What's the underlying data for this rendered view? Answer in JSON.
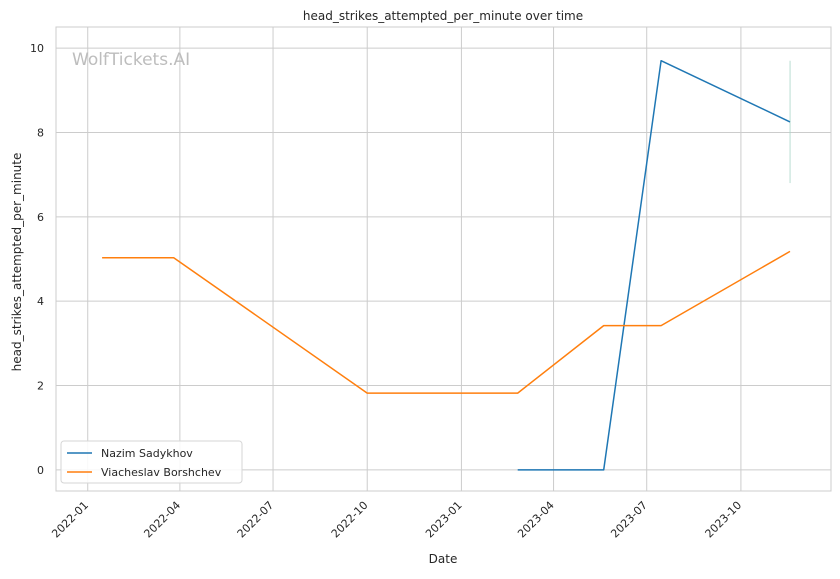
{
  "chart_data": {
    "type": "line",
    "title": "head_strikes_attempted_per_minute over time",
    "xlabel": "Date",
    "ylabel": "head_strikes_attempted_per_minute",
    "watermark": "WolfTickets.AI",
    "xlim": [
      "2021-12-01",
      "2023-12-28"
    ],
    "ylim": [
      -0.5,
      10.5
    ],
    "x_ticks": [
      "2022-01",
      "2022-04",
      "2022-07",
      "2022-10",
      "2023-01",
      "2023-04",
      "2023-07",
      "2023-10"
    ],
    "y_ticks": [
      0,
      2,
      4,
      6,
      8,
      10
    ],
    "grid": true,
    "legend_position": "lower-left",
    "series": [
      {
        "name": "Nazim Sadykhov",
        "color": "#1f77b4",
        "points": [
          {
            "x": "2023-02-25",
            "y": 0.0
          },
          {
            "x": "2023-05-20",
            "y": 0.0
          },
          {
            "x": "2023-07-15",
            "y": 9.7
          },
          {
            "x": "2023-11-18",
            "y": 8.25
          }
        ]
      },
      {
        "name": "Viacheslav Borshchev",
        "color": "#ff7f0e",
        "points": [
          {
            "x": "2022-01-15",
            "y": 5.03
          },
          {
            "x": "2022-03-26",
            "y": 5.03
          },
          {
            "x": "2022-10-01",
            "y": 1.82
          },
          {
            "x": "2023-02-25",
            "y": 1.82
          },
          {
            "x": "2023-05-20",
            "y": 3.42
          },
          {
            "x": "2023-07-15",
            "y": 3.42
          },
          {
            "x": "2023-11-18",
            "y": 5.18
          }
        ]
      }
    ],
    "error_band": {
      "x": "2023-11-18",
      "y_low": 6.8,
      "y_high": 9.7,
      "color": "#a8d5c8"
    }
  }
}
